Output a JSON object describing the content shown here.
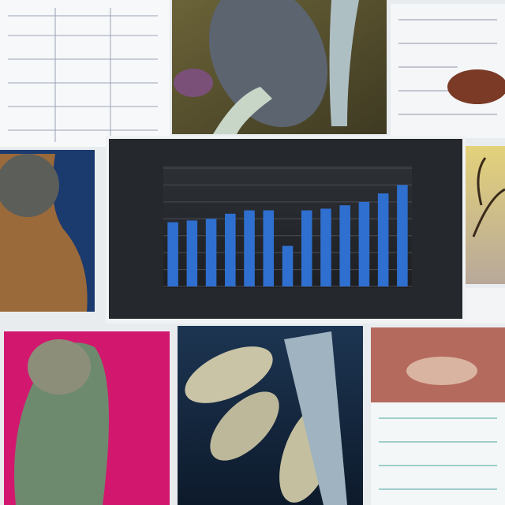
{
  "chart_data": {
    "type": "bar",
    "values": [
      3.8,
      3.9,
      4.0,
      4.3,
      4.5,
      4.5,
      2.4,
      4.5,
      4.6,
      4.8,
      5.0,
      5.5,
      6.0
    ],
    "color": "#2f6fcf",
    "ylim": [
      0,
      7
    ],
    "yticks": [
      0,
      1,
      2,
      3,
      4,
      5,
      6,
      7
    ],
    "grid": true
  }
}
